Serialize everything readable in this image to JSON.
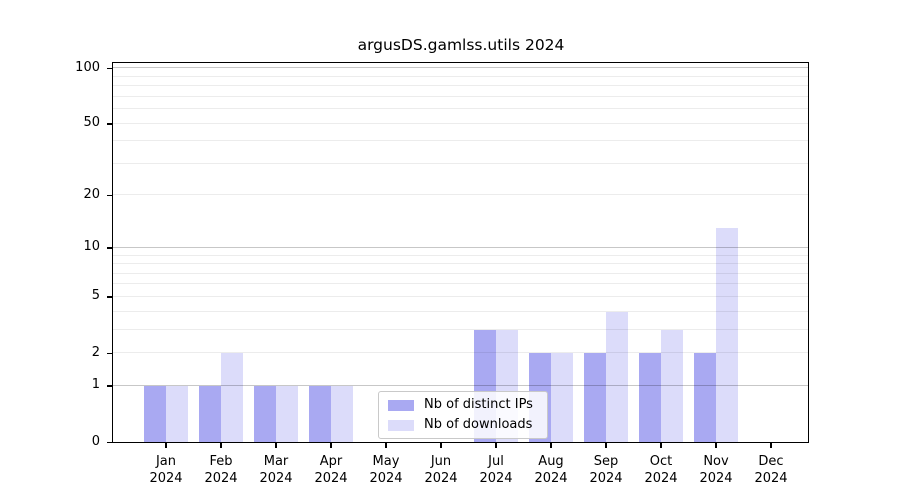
{
  "chart_data": {
    "type": "bar",
    "title": "argusDS.gamlss.utils 2024",
    "categories": [
      "Jan",
      "Feb",
      "Mar",
      "Apr",
      "May",
      "Jun",
      "Jul",
      "Aug",
      "Sep",
      "Oct",
      "Nov",
      "Dec"
    ],
    "category_year": "2024",
    "series": [
      {
        "name": "Nb of distinct IPs",
        "color": "#a9a9f2",
        "values": [
          1,
          1,
          1,
          1,
          0,
          0,
          3,
          2,
          2,
          2,
          2,
          0
        ]
      },
      {
        "name": "Nb of downloads",
        "color": "#dcdcfa",
        "values": [
          1,
          2,
          1,
          1,
          0,
          0,
          3,
          2,
          4,
          3,
          13,
          0
        ]
      }
    ],
    "yscale": "log1p",
    "ylim": [
      0,
      108
    ],
    "yticks": [
      0,
      1,
      2,
      5,
      10,
      20,
      50,
      100
    ],
    "major_gridlines": [
      1,
      10,
      100
    ],
    "minor_gridlines": [
      2,
      3,
      4,
      5,
      6,
      7,
      8,
      9,
      20,
      30,
      40,
      50,
      60,
      70,
      80,
      90
    ],
    "grid": "horizontal",
    "legend_position": "lower center",
    "axis_color": "#000000",
    "background_color": "#ffffff"
  }
}
